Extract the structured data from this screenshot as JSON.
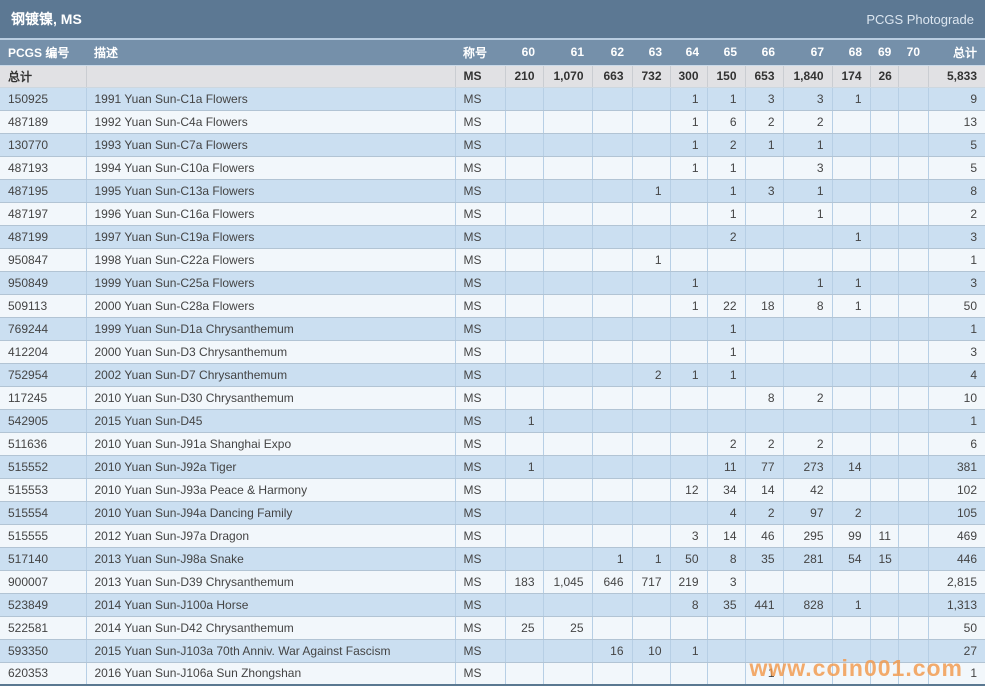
{
  "title_bar": {
    "title": "钢镀镍, MS",
    "brand": "PCGS Photograde"
  },
  "watermark": "www.coin001.com",
  "colors": {
    "title_bar_bg": "#5c7893",
    "header_bg": "#7590aa",
    "totals_bg": "#e1e1e4",
    "row_odd_bg": "#cbdff1",
    "row_even_bg": "#f2f7fb",
    "pcgs_link": "#b8784f",
    "watermark_orange": "#f2994a"
  },
  "table": {
    "columns": [
      "PCGS 编号",
      "描述",
      "称号",
      "60",
      "61",
      "62",
      "63",
      "64",
      "65",
      "66",
      "67",
      "68",
      "69",
      "70",
      "总计"
    ],
    "totals": {
      "label": "总计",
      "desc": "",
      "designation": "MS",
      "grades": [
        "210",
        "1,070",
        "663",
        "732",
        "300",
        "150",
        "653",
        "1,840",
        "174",
        "26",
        ""
      ],
      "total": "5,833"
    },
    "rows": [
      {
        "pcgs": "150925",
        "desc": "1991 Yuan Sun-C1a Flowers",
        "designation": "MS",
        "grades": [
          "",
          "",
          "",
          "",
          "1",
          "1",
          "3",
          "3",
          "1",
          "",
          ""
        ],
        "total": "9"
      },
      {
        "pcgs": "487189",
        "desc": "1992 Yuan Sun-C4a Flowers",
        "designation": "MS",
        "grades": [
          "",
          "",
          "",
          "",
          "1",
          "6",
          "2",
          "2",
          "",
          "",
          ""
        ],
        "total": "13"
      },
      {
        "pcgs": "130770",
        "desc": "1993 Yuan Sun-C7a Flowers",
        "designation": "MS",
        "grades": [
          "",
          "",
          "",
          "",
          "1",
          "2",
          "1",
          "1",
          "",
          "",
          ""
        ],
        "total": "5"
      },
      {
        "pcgs": "487193",
        "desc": "1994 Yuan Sun-C10a Flowers",
        "designation": "MS",
        "grades": [
          "",
          "",
          "",
          "",
          "1",
          "1",
          "",
          "3",
          "",
          "",
          ""
        ],
        "total": "5"
      },
      {
        "pcgs": "487195",
        "desc": "1995 Yuan Sun-C13a Flowers",
        "designation": "MS",
        "grades": [
          "",
          "",
          "",
          "1",
          "",
          "1",
          "3",
          "1",
          "",
          "",
          ""
        ],
        "total": "8"
      },
      {
        "pcgs": "487197",
        "desc": "1996 Yuan Sun-C16a Flowers",
        "designation": "MS",
        "grades": [
          "",
          "",
          "",
          "",
          "",
          "1",
          "",
          "1",
          "",
          "",
          ""
        ],
        "total": "2"
      },
      {
        "pcgs": "487199",
        "desc": "1997 Yuan Sun-C19a Flowers",
        "designation": "MS",
        "grades": [
          "",
          "",
          "",
          "",
          "",
          "2",
          "",
          "",
          "1",
          "",
          ""
        ],
        "total": "3"
      },
      {
        "pcgs": "950847",
        "desc": "1998 Yuan Sun-C22a Flowers",
        "designation": "MS",
        "grades": [
          "",
          "",
          "",
          "1",
          "",
          "",
          "",
          "",
          "",
          "",
          ""
        ],
        "total": "1"
      },
      {
        "pcgs": "950849",
        "desc": "1999 Yuan Sun-C25a Flowers",
        "designation": "MS",
        "grades": [
          "",
          "",
          "",
          "",
          "1",
          "",
          "",
          "1",
          "1",
          "",
          ""
        ],
        "total": "3"
      },
      {
        "pcgs": "509113",
        "desc": "2000 Yuan Sun-C28a Flowers",
        "designation": "MS",
        "grades": [
          "",
          "",
          "",
          "",
          "1",
          "22",
          "18",
          "8",
          "1",
          "",
          ""
        ],
        "total": "50"
      },
      {
        "pcgs": "769244",
        "desc": "1999 Yuan Sun-D1a Chrysanthemum",
        "designation": "MS",
        "grades": [
          "",
          "",
          "",
          "",
          "",
          "1",
          "",
          "",
          "",
          "",
          ""
        ],
        "total": "1"
      },
      {
        "pcgs": "412204",
        "desc": "2000 Yuan Sun-D3 Chrysanthemum",
        "designation": "MS",
        "grades": [
          "",
          "",
          "",
          "",
          "",
          "1",
          "",
          "",
          "",
          "",
          ""
        ],
        "total": "3"
      },
      {
        "pcgs": "752954",
        "desc": "2002 Yuan Sun-D7 Chrysanthemum",
        "designation": "MS",
        "grades": [
          "",
          "",
          "",
          "2",
          "1",
          "1",
          "",
          "",
          "",
          "",
          ""
        ],
        "total": "4"
      },
      {
        "pcgs": "117245",
        "desc": "2010 Yuan Sun-D30 Chrysanthemum",
        "designation": "MS",
        "grades": [
          "",
          "",
          "",
          "",
          "",
          "",
          "8",
          "2",
          "",
          "",
          ""
        ],
        "total": "10"
      },
      {
        "pcgs": "542905",
        "desc": "2015 Yuan Sun-D45",
        "designation": "MS",
        "grades": [
          "1",
          "",
          "",
          "",
          "",
          "",
          "",
          "",
          "",
          "",
          ""
        ],
        "total": "1"
      },
      {
        "pcgs": "511636",
        "desc": "2010 Yuan Sun-J91a Shanghai Expo",
        "designation": "MS",
        "grades": [
          "",
          "",
          "",
          "",
          "",
          "2",
          "2",
          "2",
          "",
          "",
          ""
        ],
        "total": "6"
      },
      {
        "pcgs": "515552",
        "desc": "2010 Yuan Sun-J92a Tiger",
        "designation": "MS",
        "grades": [
          "1",
          "",
          "",
          "",
          "",
          "11",
          "77",
          "273",
          "14",
          "",
          ""
        ],
        "total": "381"
      },
      {
        "pcgs": "515553",
        "desc": "2010 Yuan Sun-J93a Peace & Harmony",
        "designation": "MS",
        "grades": [
          "",
          "",
          "",
          "",
          "12",
          "34",
          "14",
          "42",
          "",
          "",
          ""
        ],
        "total": "102"
      },
      {
        "pcgs": "515554",
        "desc": "2010 Yuan Sun-J94a Dancing Family",
        "designation": "MS",
        "grades": [
          "",
          "",
          "",
          "",
          "",
          "4",
          "2",
          "97",
          "2",
          "",
          ""
        ],
        "total": "105"
      },
      {
        "pcgs": "515555",
        "desc": "2012 Yuan Sun-J97a Dragon",
        "designation": "MS",
        "grades": [
          "",
          "",
          "",
          "",
          "3",
          "14",
          "46",
          "295",
          "99",
          "11",
          ""
        ],
        "total": "469"
      },
      {
        "pcgs": "517140",
        "desc": "2013 Yuan Sun-J98a Snake",
        "designation": "MS",
        "grades": [
          "",
          "",
          "1",
          "1",
          "50",
          "8",
          "35",
          "281",
          "54",
          "15",
          ""
        ],
        "total": "446"
      },
      {
        "pcgs": "900007",
        "desc": "2013 Yuan Sun-D39 Chrysanthemum",
        "designation": "MS",
        "grades": [
          "183",
          "1,045",
          "646",
          "717",
          "219",
          "3",
          "",
          "",
          "",
          "",
          ""
        ],
        "total": "2,815"
      },
      {
        "pcgs": "523849",
        "desc": "2014 Yuan Sun-J100a Horse",
        "designation": "MS",
        "grades": [
          "",
          "",
          "",
          "",
          "8",
          "35",
          "441",
          "828",
          "1",
          "",
          ""
        ],
        "total": "1,313"
      },
      {
        "pcgs": "522581",
        "desc": "2014 Yuan Sun-D42 Chrysanthemum",
        "designation": "MS",
        "grades": [
          "25",
          "25",
          "",
          "",
          "",
          "",
          "",
          "",
          "",
          "",
          ""
        ],
        "total": "50"
      },
      {
        "pcgs": "593350",
        "desc": "2015 Yuan Sun-J103a 70th Anniv. War Against Fascism",
        "designation": "MS",
        "grades": [
          "",
          "",
          "16",
          "10",
          "1",
          "",
          "",
          "",
          "",
          "",
          ""
        ],
        "total": "27"
      },
      {
        "pcgs": "620353",
        "desc": "2016 Yuan Sun-J106a Sun Zhongshan",
        "designation": "MS",
        "grades": [
          "",
          "",
          "",
          "",
          "",
          "",
          "1",
          "",
          "",
          "",
          ""
        ],
        "total": "1"
      }
    ]
  }
}
